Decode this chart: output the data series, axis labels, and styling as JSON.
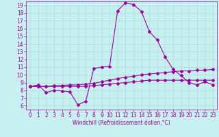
{
  "xlabel": "Windchill (Refroidissement éolien,°C)",
  "bg_color": "#c8f0f0",
  "line_color": "#990099",
  "grid_color": "#aadddd",
  "xlim": [
    -0.5,
    23.5
  ],
  "ylim": [
    5.5,
    19.5
  ],
  "yticks": [
    6,
    7,
    8,
    9,
    10,
    11,
    12,
    13,
    14,
    15,
    16,
    17,
    18,
    19
  ],
  "xticks": [
    0,
    1,
    2,
    3,
    4,
    5,
    6,
    7,
    8,
    9,
    10,
    11,
    12,
    13,
    14,
    15,
    16,
    17,
    18,
    19,
    20,
    21,
    22,
    23
  ],
  "series1_x": [
    0,
    1,
    2,
    3,
    4,
    5,
    6,
    7,
    8,
    9,
    10,
    11,
    12,
    13,
    14,
    15,
    16,
    17,
    18,
    19,
    20,
    21,
    22,
    23
  ],
  "series1_y": [
    8.5,
    8.7,
    7.7,
    8.0,
    7.9,
    7.8,
    6.1,
    6.6,
    10.8,
    11.0,
    11.1,
    18.3,
    19.3,
    19.1,
    18.2,
    15.6,
    14.5,
    12.3,
    10.7,
    9.9,
    9.0,
    8.7,
    9.1,
    8.7
  ],
  "series2_x": [
    0,
    1,
    2,
    3,
    4,
    5,
    6,
    7,
    8,
    9,
    10,
    11,
    12,
    13,
    14,
    15,
    16,
    17,
    18,
    19,
    20,
    21,
    22,
    23
  ],
  "series2_y": [
    8.5,
    8.5,
    8.5,
    8.6,
    8.6,
    8.7,
    8.7,
    8.8,
    8.9,
    9.1,
    9.3,
    9.5,
    9.7,
    9.8,
    10.0,
    10.1,
    10.2,
    10.3,
    10.4,
    10.5,
    10.5,
    10.6,
    10.6,
    10.7
  ],
  "series3_x": [
    0,
    1,
    2,
    3,
    4,
    5,
    6,
    7,
    8,
    9,
    10,
    11,
    12,
    13,
    14,
    15,
    16,
    17,
    18,
    19,
    20,
    21,
    22,
    23
  ],
  "series3_y": [
    8.5,
    8.5,
    8.5,
    8.5,
    8.5,
    8.5,
    8.5,
    8.5,
    8.6,
    8.7,
    8.8,
    8.9,
    9.0,
    9.1,
    9.2,
    9.3,
    9.3,
    9.3,
    9.3,
    9.3,
    9.3,
    9.3,
    9.3,
    9.3
  ],
  "marker_size": 2.0,
  "linewidth": 0.8,
  "tick_labelsize": 5.5,
  "xlabel_fontsize": 5.5
}
